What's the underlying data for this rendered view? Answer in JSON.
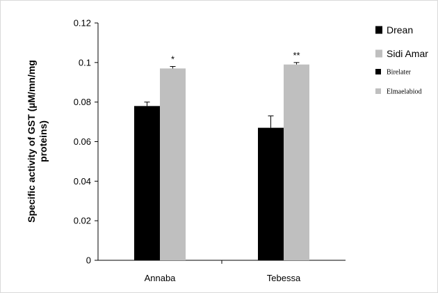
{
  "chart_data": {
    "type": "bar",
    "categories": [
      "Annaba",
      "Tebessa"
    ],
    "series": [
      {
        "name": "Drean",
        "color": "#000000",
        "values": [
          0.078,
          0.067
        ],
        "errors": [
          0.002,
          0.006
        ]
      },
      {
        "name": "Sidi Amar",
        "color": "#bfbfbf",
        "values": [
          0.097,
          0.099
        ],
        "errors": [
          0.001,
          0.001
        ]
      }
    ],
    "significance": [
      {
        "category": "Annaba",
        "series": "Sidi Amar",
        "label": "*"
      },
      {
        "category": "Tebessa",
        "series": "Sidi Amar",
        "label": "**"
      }
    ],
    "extra_legend": [
      {
        "name": "Birelater",
        "color": "#000000"
      },
      {
        "name": "Elmaelabiod",
        "color": "#bfbfbf"
      }
    ],
    "ylabel_lines": [
      "Specific activity of GST (µM/mn/mg",
      "proteins)"
    ],
    "yticks": [
      "0",
      "0.02",
      "0.04",
      "0.06",
      "0.08",
      "0.1",
      "0.12"
    ],
    "ylim": [
      0,
      0.12
    ],
    "grid": false,
    "legend_position": "right"
  }
}
